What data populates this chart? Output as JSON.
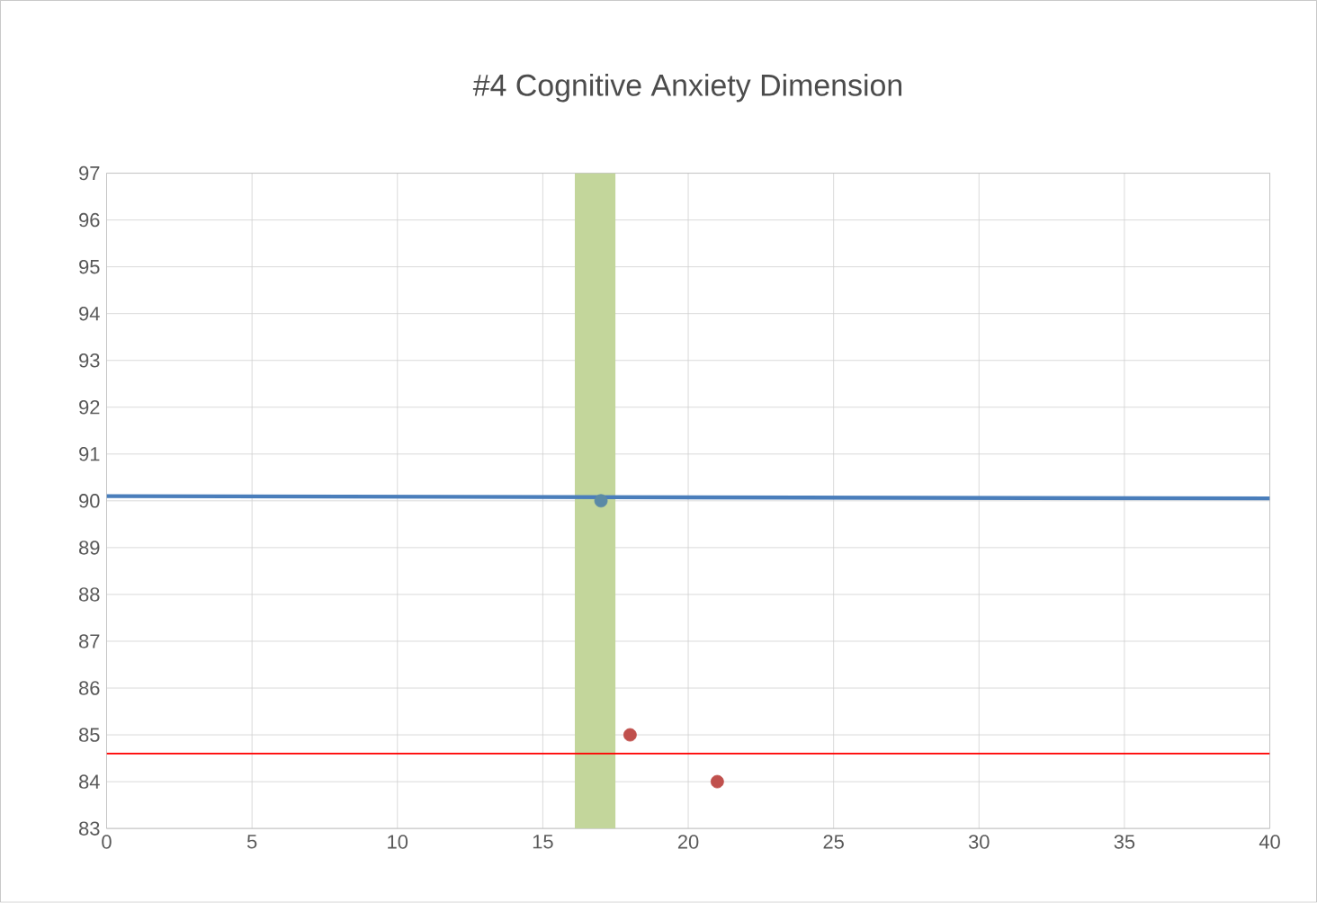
{
  "chart_data": {
    "type": "scatter",
    "title": "#4  Cognitive Anxiety Dimension",
    "xlim": [
      0,
      40
    ],
    "ylim": [
      83,
      97
    ],
    "xticks": [
      0,
      5,
      10,
      15,
      20,
      25,
      30,
      35,
      40
    ],
    "yticks": [
      83,
      84,
      85,
      86,
      87,
      88,
      89,
      90,
      91,
      92,
      93,
      94,
      95,
      96,
      97
    ],
    "grid": true,
    "series": [
      {
        "type": "line",
        "color": "#4a7ebb",
        "x": [
          0,
          40
        ],
        "values": [
          90.1,
          90.05
        ],
        "marker": "none"
      },
      {
        "color": "#5a8aa6",
        "x": [
          17
        ],
        "values": [
          90
        ],
        "marker": "circle"
      },
      {
        "color": "#c0504d",
        "x": [
          18,
          21
        ],
        "values": [
          85,
          84
        ],
        "marker": "circle"
      }
    ],
    "bands": [
      {
        "axis": "x",
        "from": 16.1,
        "to": 17.5,
        "color": "#c3d69b"
      }
    ],
    "ref_lines": [
      {
        "axis": "y",
        "value": 84.6,
        "color": "#ff0000"
      }
    ]
  }
}
